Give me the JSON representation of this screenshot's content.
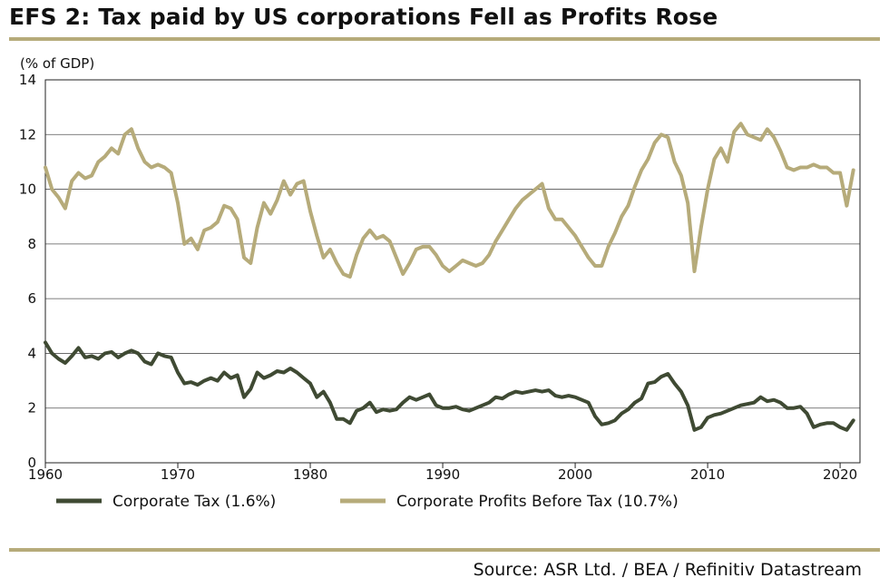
{
  "title": "EFS 2: Tax paid by US corporations Fell as Profits Rose",
  "source": "Source: ASR Ltd. / BEA / Refinitiv Datastream",
  "colors": {
    "tax": "#3f4a33",
    "profits": "#b6ab7a",
    "rule": "#b6ab7a",
    "grid": "#555555"
  },
  "chart_data": {
    "type": "line",
    "title": "EFS 2: Tax paid by US corporations Fell as Profits Rose",
    "ylabel": "(% of GDP)",
    "xlabel": "",
    "xlim": [
      1960,
      2021.5
    ],
    "ylim": [
      0,
      14
    ],
    "xticks": [
      "1960",
      "1970",
      "1980",
      "1990",
      "2000",
      "2010",
      "2020"
    ],
    "yticks": [
      "0",
      "2",
      "4",
      "6",
      "8",
      "10",
      "12",
      "14"
    ],
    "grid": true,
    "legend_position": "bottom",
    "series": [
      {
        "name": "Corporate Tax (1.6%)",
        "points": [
          [
            1960,
            4.4
          ],
          [
            1960.5,
            4.0
          ],
          [
            1961,
            3.8
          ],
          [
            1961.5,
            3.65
          ],
          [
            1962,
            3.9
          ],
          [
            1962.5,
            4.2
          ],
          [
            1963,
            3.85
          ],
          [
            1963.5,
            3.9
          ],
          [
            1964,
            3.8
          ],
          [
            1964.5,
            4.0
          ],
          [
            1965,
            4.05
          ],
          [
            1965.5,
            3.85
          ],
          [
            1966,
            4.0
          ],
          [
            1966.5,
            4.1
          ],
          [
            1967,
            4.0
          ],
          [
            1967.5,
            3.7
          ],
          [
            1968,
            3.6
          ],
          [
            1968.5,
            4.0
          ],
          [
            1969,
            3.9
          ],
          [
            1969.5,
            3.85
          ],
          [
            1970,
            3.3
          ],
          [
            1970.5,
            2.9
          ],
          [
            1971,
            2.95
          ],
          [
            1971.5,
            2.85
          ],
          [
            1972,
            3.0
          ],
          [
            1972.5,
            3.1
          ],
          [
            1973,
            3.0
          ],
          [
            1973.5,
            3.3
          ],
          [
            1974,
            3.1
          ],
          [
            1974.5,
            3.2
          ],
          [
            1975,
            2.4
          ],
          [
            1975.5,
            2.7
          ],
          [
            1976,
            3.3
          ],
          [
            1976.5,
            3.1
          ],
          [
            1977,
            3.2
          ],
          [
            1977.5,
            3.35
          ],
          [
            1978,
            3.3
          ],
          [
            1978.5,
            3.45
          ],
          [
            1979,
            3.3
          ],
          [
            1979.5,
            3.1
          ],
          [
            1980,
            2.9
          ],
          [
            1980.5,
            2.4
          ],
          [
            1981,
            2.6
          ],
          [
            1981.5,
            2.2
          ],
          [
            1982,
            1.6
          ],
          [
            1982.5,
            1.6
          ],
          [
            1983,
            1.45
          ],
          [
            1983.5,
            1.9
          ],
          [
            1984,
            2.0
          ],
          [
            1984.5,
            2.2
          ],
          [
            1985,
            1.85
          ],
          [
            1985.5,
            1.95
          ],
          [
            1986,
            1.9
          ],
          [
            1986.5,
            1.95
          ],
          [
            1987,
            2.2
          ],
          [
            1987.5,
            2.4
          ],
          [
            1988,
            2.3
          ],
          [
            1988.5,
            2.4
          ],
          [
            1989,
            2.5
          ],
          [
            1989.5,
            2.1
          ],
          [
            1990,
            2.0
          ],
          [
            1990.5,
            2.0
          ],
          [
            1991,
            2.05
          ],
          [
            1991.5,
            1.95
          ],
          [
            1992,
            1.9
          ],
          [
            1992.5,
            2.0
          ],
          [
            1993,
            2.1
          ],
          [
            1993.5,
            2.2
          ],
          [
            1994,
            2.4
          ],
          [
            1994.5,
            2.35
          ],
          [
            1995,
            2.5
          ],
          [
            1995.5,
            2.6
          ],
          [
            1996,
            2.55
          ],
          [
            1996.5,
            2.6
          ],
          [
            1997,
            2.65
          ],
          [
            1997.5,
            2.6
          ],
          [
            1998,
            2.65
          ],
          [
            1998.5,
            2.45
          ],
          [
            1999,
            2.4
          ],
          [
            1999.5,
            2.45
          ],
          [
            2000,
            2.4
          ],
          [
            2000.5,
            2.3
          ],
          [
            2001,
            2.2
          ],
          [
            2001.5,
            1.7
          ],
          [
            2002,
            1.4
          ],
          [
            2002.5,
            1.45
          ],
          [
            2003,
            1.55
          ],
          [
            2003.5,
            1.8
          ],
          [
            2004,
            1.95
          ],
          [
            2004.5,
            2.2
          ],
          [
            2005,
            2.35
          ],
          [
            2005.5,
            2.9
          ],
          [
            2006,
            2.95
          ],
          [
            2006.5,
            3.15
          ],
          [
            2007,
            3.25
          ],
          [
            2007.5,
            2.9
          ],
          [
            2008,
            2.6
          ],
          [
            2008.5,
            2.1
          ],
          [
            2009,
            1.2
          ],
          [
            2009.5,
            1.3
          ],
          [
            2010,
            1.65
          ],
          [
            2010.5,
            1.75
          ],
          [
            2011,
            1.8
          ],
          [
            2011.5,
            1.9
          ],
          [
            2012,
            2.0
          ],
          [
            2012.5,
            2.1
          ],
          [
            2013,
            2.15
          ],
          [
            2013.5,
            2.2
          ],
          [
            2014,
            2.4
          ],
          [
            2014.5,
            2.25
          ],
          [
            2015,
            2.3
          ],
          [
            2015.5,
            2.2
          ],
          [
            2016,
            2.0
          ],
          [
            2016.5,
            2.0
          ],
          [
            2017,
            2.05
          ],
          [
            2017.5,
            1.8
          ],
          [
            2018,
            1.3
          ],
          [
            2018.5,
            1.4
          ],
          [
            2019,
            1.45
          ],
          [
            2019.5,
            1.45
          ],
          [
            2020,
            1.3
          ],
          [
            2020.5,
            1.2
          ],
          [
            2021,
            1.55
          ]
        ]
      },
      {
        "name": "Corporate Profits Before Tax (10.7%)",
        "points": [
          [
            1960,
            10.8
          ],
          [
            1960.5,
            10.0
          ],
          [
            1961,
            9.7
          ],
          [
            1961.5,
            9.3
          ],
          [
            1962,
            10.3
          ],
          [
            1962.5,
            10.6
          ],
          [
            1963,
            10.4
          ],
          [
            1963.5,
            10.5
          ],
          [
            1964,
            11.0
          ],
          [
            1964.5,
            11.2
          ],
          [
            1965,
            11.5
          ],
          [
            1965.5,
            11.3
          ],
          [
            1966,
            12.0
          ],
          [
            1966.5,
            12.2
          ],
          [
            1967,
            11.5
          ],
          [
            1967.5,
            11.0
          ],
          [
            1968,
            10.8
          ],
          [
            1968.5,
            10.9
          ],
          [
            1969,
            10.8
          ],
          [
            1969.5,
            10.6
          ],
          [
            1970,
            9.5
          ],
          [
            1970.5,
            8.0
          ],
          [
            1971,
            8.2
          ],
          [
            1971.5,
            7.8
          ],
          [
            1972,
            8.5
          ],
          [
            1972.5,
            8.6
          ],
          [
            1973,
            8.8
          ],
          [
            1973.5,
            9.4
          ],
          [
            1974,
            9.3
          ],
          [
            1974.5,
            8.9
          ],
          [
            1975,
            7.5
          ],
          [
            1975.5,
            7.3
          ],
          [
            1976,
            8.6
          ],
          [
            1976.5,
            9.5
          ],
          [
            1977,
            9.1
          ],
          [
            1977.5,
            9.6
          ],
          [
            1978,
            10.3
          ],
          [
            1978.5,
            9.8
          ],
          [
            1979,
            10.2
          ],
          [
            1979.5,
            10.3
          ],
          [
            1980,
            9.2
          ],
          [
            1980.5,
            8.3
          ],
          [
            1981,
            7.5
          ],
          [
            1981.5,
            7.8
          ],
          [
            1982,
            7.3
          ],
          [
            1982.5,
            6.9
          ],
          [
            1983,
            6.8
          ],
          [
            1983.5,
            7.6
          ],
          [
            1984,
            8.2
          ],
          [
            1984.5,
            8.5
          ],
          [
            1985,
            8.2
          ],
          [
            1985.5,
            8.3
          ],
          [
            1986,
            8.1
          ],
          [
            1986.5,
            7.5
          ],
          [
            1987,
            6.9
          ],
          [
            1987.5,
            7.3
          ],
          [
            1988,
            7.8
          ],
          [
            1988.5,
            7.9
          ],
          [
            1989,
            7.9
          ],
          [
            1989.5,
            7.6
          ],
          [
            1990,
            7.2
          ],
          [
            1990.5,
            7.0
          ],
          [
            1991,
            7.2
          ],
          [
            1991.5,
            7.4
          ],
          [
            1992,
            7.3
          ],
          [
            1992.5,
            7.2
          ],
          [
            1993,
            7.3
          ],
          [
            1993.5,
            7.6
          ],
          [
            1994,
            8.1
          ],
          [
            1994.5,
            8.5
          ],
          [
            1995,
            8.9
          ],
          [
            1995.5,
            9.3
          ],
          [
            1996,
            9.6
          ],
          [
            1996.5,
            9.8
          ],
          [
            1997,
            10.0
          ],
          [
            1997.5,
            10.2
          ],
          [
            1998,
            9.3
          ],
          [
            1998.5,
            8.9
          ],
          [
            1999,
            8.9
          ],
          [
            1999.5,
            8.6
          ],
          [
            2000,
            8.3
          ],
          [
            2000.5,
            7.9
          ],
          [
            2001,
            7.5
          ],
          [
            2001.5,
            7.2
          ],
          [
            2002,
            7.2
          ],
          [
            2002.5,
            7.9
          ],
          [
            2003,
            8.4
          ],
          [
            2003.5,
            9.0
          ],
          [
            2004,
            9.4
          ],
          [
            2004.5,
            10.1
          ],
          [
            2005,
            10.7
          ],
          [
            2005.5,
            11.1
          ],
          [
            2006,
            11.7
          ],
          [
            2006.5,
            12.0
          ],
          [
            2007,
            11.9
          ],
          [
            2007.5,
            11.0
          ],
          [
            2008,
            10.5
          ],
          [
            2008.5,
            9.5
          ],
          [
            2009,
            7.0
          ],
          [
            2009.5,
            8.6
          ],
          [
            2010,
            10.0
          ],
          [
            2010.5,
            11.1
          ],
          [
            2011,
            11.5
          ],
          [
            2011.5,
            11.0
          ],
          [
            2012,
            12.1
          ],
          [
            2012.5,
            12.4
          ],
          [
            2013,
            12.0
          ],
          [
            2013.5,
            11.9
          ],
          [
            2014,
            11.8
          ],
          [
            2014.5,
            12.2
          ],
          [
            2015,
            11.9
          ],
          [
            2015.5,
            11.4
          ],
          [
            2016,
            10.8
          ],
          [
            2016.5,
            10.7
          ],
          [
            2017,
            10.8
          ],
          [
            2017.5,
            10.8
          ],
          [
            2018,
            10.9
          ],
          [
            2018.5,
            10.8
          ],
          [
            2019,
            10.8
          ],
          [
            2019.5,
            10.6
          ],
          [
            2020,
            10.6
          ],
          [
            2020.5,
            9.4
          ],
          [
            2021,
            10.7
          ]
        ]
      }
    ]
  }
}
